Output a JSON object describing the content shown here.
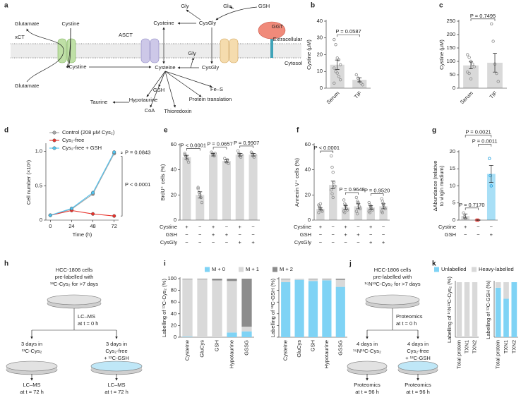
{
  "diagram_a": {
    "label": "a",
    "texts": [
      "Glutamate",
      "Cystine",
      "xCT",
      "Glutamate",
      "Cystine",
      "Cysteine",
      "ASCT",
      "Gly",
      "CysGly",
      "Glu",
      "GSH",
      "GGT",
      "Extracellular",
      "Cytosol",
      "Gly",
      "CysGly",
      "Cysteine",
      "GSH",
      "Hypotaurine",
      "Taurine",
      "CoA",
      "Thioredoxin",
      "Protein translation",
      "Fe–S"
    ]
  },
  "diagram_h": {
    "label": "h",
    "header": [
      "HCC-1806 cells",
      "pre-labelled with",
      "¹³C-Cys₂ for >7 days"
    ],
    "step0": [
      "LC–MS",
      "at t = 0 h"
    ],
    "left": [
      "3 days in",
      "¹³C-Cys₂"
    ],
    "right": [
      "3 days in",
      "Cys₂-free",
      "+ ¹²C-GSH"
    ],
    "left_end": [
      "LC–MS",
      "at t = 72 h"
    ],
    "right_end": [
      "LC–MS",
      "at t = 72 h"
    ]
  },
  "diagram_j": {
    "label": "j",
    "header": [
      "HCC-1806 cells",
      "pre-labelled with",
      "¹⁵N¹³C-Cys₂ for >7 days"
    ],
    "step0": [
      "Proteomics",
      "at t = 0 h"
    ],
    "left": [
      "4 days in",
      "¹⁵N¹³C-Cys₂"
    ],
    "right": [
      "4 days in",
      "Cys₂-free",
      "+ ¹²C-GSH"
    ],
    "left_end": [
      "Proteomics",
      "at t = 96 h"
    ],
    "right_end": [
      "Proteomics",
      "at t = 96 h"
    ]
  },
  "chart_data": [
    {
      "type": "bar",
      "label": "b",
      "ylabel": "Cystine (μM)",
      "categories": [
        "Serum",
        "TIF"
      ],
      "values": [
        14,
        5
      ],
      "errors": [
        2.8,
        1.2
      ],
      "points": [
        [
          29,
          26,
          18,
          17,
          14,
          12,
          10,
          9,
          7,
          5,
          3
        ],
        [
          8,
          6,
          4,
          3,
          2
        ]
      ],
      "color": "#d9d9d9",
      "point_color": "#8c8c8c",
      "ylim": [
        0,
        40
      ],
      "yticks": [
        0,
        10,
        20,
        30,
        40
      ],
      "annotations": [
        "P = 0.0587"
      ]
    },
    {
      "type": "bar",
      "label": "c",
      "ylabel": "Cystine (μM)",
      "categories": [
        "Serum",
        "TIF"
      ],
      "values": [
        85,
        95
      ],
      "errors": [
        13,
        35
      ],
      "points": [
        [
          125,
          115,
          100,
          90,
          80,
          60,
          55,
          35
        ],
        [
          240,
          175,
          90,
          55,
          25
        ]
      ],
      "color": "#d9d9d9",
      "point_color": "#8c8c8c",
      "ylim": [
        0,
        250
      ],
      "yticks": [
        0,
        50,
        100,
        150,
        200,
        250
      ],
      "annotations": [
        "P = 0.7495"
      ]
    },
    {
      "type": "line",
      "label": "d",
      "xlabel": "Time (h)",
      "ylabel": "Cell number (×10⁶)",
      "x": [
        0,
        24,
        48,
        72
      ],
      "xlim": [
        -5,
        77
      ],
      "xticks": [
        0,
        24,
        48,
        72
      ],
      "ylim": [
        0,
        1.1
      ],
      "yticks": [
        0,
        0.5,
        {
          "value": 1,
          "label": "1.0"
        }
      ],
      "series": [
        {
          "name": "Control (208 μM Cys₂)",
          "color": "#a6a6a6",
          "values": [
            0.07,
            0.16,
            0.38,
            0.97
          ]
        },
        {
          "name": "Cys₂-free",
          "color": "#e8312a",
          "values": [
            0.07,
            0.14,
            0.09,
            0.06
          ]
        },
        {
          "name": "Cys₂-free + GSH",
          "color": "#4fc3f0",
          "values": [
            0.07,
            0.17,
            0.4,
            0.99
          ]
        }
      ],
      "annotations": [
        "P = 0.0843",
        "P < 0.0001"
      ]
    },
    {
      "type": "bar",
      "label": "e",
      "ylabel": "BrdU⁺ cells (%)",
      "values": [
        50,
        20,
        52,
        47,
        52,
        52
      ],
      "errors": [
        1.5,
        2.5,
        1,
        1,
        1,
        1
      ],
      "points": [
        [
          53,
          51,
          50,
          48,
          46,
          52
        ],
        [
          26,
          22,
          20,
          18,
          14,
          25
        ],
        [
          54,
          53,
          52,
          51,
          53
        ],
        [
          49,
          47,
          46,
          48,
          45
        ],
        [
          55,
          53,
          51,
          50,
          52
        ],
        [
          54,
          53,
          51,
          50,
          52
        ]
      ],
      "color": "#d9d9d9",
      "point_color": "#8c8c8c",
      "ylim": [
        0,
        60
      ],
      "yticks": [
        0,
        20,
        40,
        60
      ],
      "conditions": [
        {
          "name": "Cystine",
          "values": [
            "+",
            "−",
            "+",
            "−",
            "+",
            "−"
          ]
        },
        {
          "name": "GSH",
          "values": [
            "−",
            "−",
            "+",
            "+",
            "−",
            "−"
          ]
        },
        {
          "name": "CysGly",
          "values": [
            "−",
            "−",
            "−",
            "−",
            "+",
            "+"
          ]
        }
      ],
      "annotations": [
        "P < 0.0001",
        "P = 0.0657",
        "P = 0.9907"
      ]
    },
    {
      "type": "bar",
      "label": "f",
      "ylabel": "Annexin V⁺ cells (%)",
      "values": [
        9,
        28,
        10,
        11,
        10,
        11
      ],
      "errors": [
        1,
        3,
        1.5,
        2,
        1.5,
        2
      ],
      "points": [
        [
          12,
          10,
          9,
          8,
          7,
          6,
          11,
          13
        ],
        [
          51,
          42,
          38,
          30,
          27,
          24,
          21,
          18
        ],
        [
          16,
          13,
          11,
          9,
          8,
          7,
          6,
          12
        ],
        [
          18,
          15,
          13,
          11,
          9,
          7,
          5,
          14
        ],
        [
          14,
          12,
          10,
          9,
          8,
          7,
          6,
          11
        ],
        [
          17,
          15,
          12,
          10,
          9,
          7,
          6,
          13
        ]
      ],
      "color": "#d9d9d9",
      "point_color": "#8c8c8c",
      "ylim": [
        0,
        60
      ],
      "yticks": [
        0,
        20,
        40,
        60
      ],
      "conditions": [
        {
          "name": "Cystine",
          "values": [
            "+",
            "−",
            "+",
            "−",
            "+",
            "−"
          ]
        },
        {
          "name": "GSH",
          "values": [
            "−",
            "−",
            "+",
            "+",
            "−",
            "−"
          ]
        },
        {
          "name": "CysGly",
          "values": [
            "−",
            "−",
            "−",
            "−",
            "+",
            "+"
          ]
        }
      ],
      "annotations": [
        "P < 0.0001",
        "P = 0.9648",
        "P = 0.9520"
      ]
    },
    {
      "type": "bar",
      "label": "g",
      "ylabel": [
        "ΔAbundance (relative",
        "to virgin medium)"
      ],
      "values": [
        1.2,
        0,
        13.5
      ],
      "errors": [
        0.6,
        0.05,
        2.5
      ],
      "points": [
        [
          2.1,
          1,
          0.5
        ],
        [
          0,
          0,
          0
        ],
        [
          18,
          13,
          10
        ]
      ],
      "colors": [
        "#d9d9d9",
        "#f4a39e",
        "#a8dff6"
      ],
      "point_colors": [
        "#8c8c8c",
        "#e8312a",
        "#1a9ee0"
      ],
      "ylim": [
        0,
        20
      ],
      "yticks": [
        0,
        5,
        10,
        15,
        20
      ],
      "conditions": [
        {
          "name": "Cystine",
          "values": [
            "+",
            "−",
            "−"
          ]
        },
        {
          "name": "GSH",
          "values": [
            "−",
            "−",
            "+"
          ]
        }
      ],
      "annotations": [
        "P = 0.0021",
        "P = 0.0011",
        "P = 0.7170"
      ]
    },
    {
      "type": "stacked_bar",
      "label": "i",
      "series": [
        {
          "name": "M + 0",
          "color": "#7fd3f5"
        },
        {
          "name": "M + 1",
          "color": "#d9d9d9"
        },
        {
          "name": "M + 2",
          "color": "#8c8c8c"
        }
      ],
      "ylim": [
        0,
        100
      ],
      "yticks": [
        0,
        20,
        40,
        60,
        80,
        100
      ],
      "subplots": [
        {
          "ylabel": "Labelling of ¹³C-Cys₂ (%)",
          "categories": [
            "Cysteine",
            "GluCys",
            "GSH",
            "Hypotaurine",
            "GSSG"
          ],
          "values": [
            [
              1,
              0,
              0,
              8,
              10
            ],
            [
              98,
              99,
              97,
              88,
              8
            ],
            [
              1,
              1,
              3,
              4,
              82
            ]
          ]
        },
        {
          "ylabel": "Labelling of ¹²C-GSH (%)",
          "categories": [
            "Cysteine",
            "GluCys",
            "GSH",
            "Hypotaurine",
            "GSSG"
          ],
          "values": [
            [
              94,
              98,
              96,
              97,
              86
            ],
            [
              5,
              2,
              3,
              2,
              12
            ],
            [
              1,
              0,
              1,
              1,
              2
            ]
          ]
        }
      ]
    },
    {
      "type": "stacked_bar",
      "label": "k",
      "series": [
        {
          "name": "Unlabelled",
          "color": "#7fd3f5"
        },
        {
          "name": "Heavy-labelled",
          "color": "#d9d9d9"
        }
      ],
      "ylim": [
        0,
        100
      ],
      "subplots": [
        {
          "ylabel": "Labelling of ¹⁵N¹³C-Cys₂ (%)",
          "categories": [
            "Total protein",
            "TXN1",
            "TXN2"
          ],
          "values": [
            [
              0,
              0,
              0
            ],
            [
              100,
              100,
              100
            ]
          ]
        },
        {
          "ylabel": "Labelling of ¹²C-GSH (%)",
          "categories": [
            "Total protein",
            "TXN1",
            "TXN2"
          ],
          "values": [
            [
              90,
              70,
              100
            ],
            [
              10,
              30,
              0
            ]
          ]
        }
      ]
    }
  ]
}
